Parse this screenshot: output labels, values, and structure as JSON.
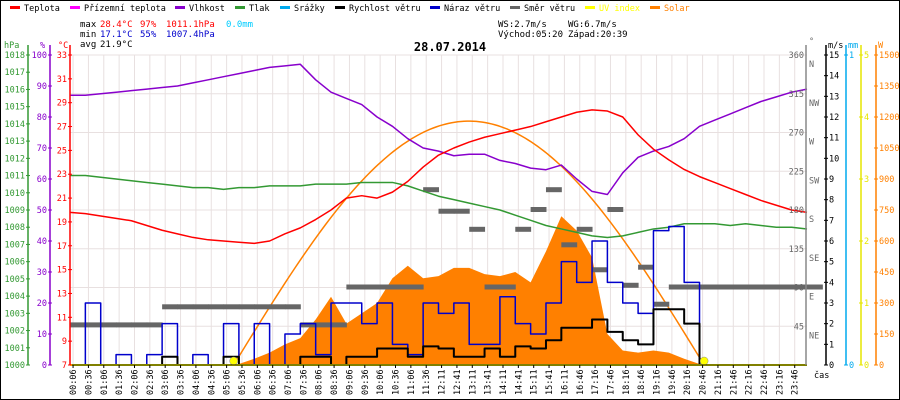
{
  "legend": [
    {
      "label": "Teplota",
      "color": "#ff0000"
    },
    {
      "label": "Přízemní teplota",
      "color": "#ff00ff"
    },
    {
      "label": "Vlhkost",
      "color": "#8800cc"
    },
    {
      "label": "Tlak",
      "color": "#339933"
    },
    {
      "label": "Srážky",
      "color": "#00aaee"
    },
    {
      "label": "Rychlost větru",
      "color": "#000000"
    },
    {
      "label": "Náraz větru",
      "color": "#0000cc"
    },
    {
      "label": "Směr větru",
      "color": "#666666"
    },
    {
      "label": "UV index",
      "color": "#ffff00"
    },
    {
      "label": "Solar",
      "color": "#ff8000"
    }
  ],
  "stats": {
    "max_label": "max",
    "max_temp": "28.4°C",
    "max_hum": "97%",
    "max_press": "1011.1hPa",
    "rain": "0.0mm",
    "min_label": "min",
    "min_temp": "17.1°C",
    "min_hum": "55%",
    "min_press": "1007.4hPa",
    "avg_label": "avg",
    "avg_temp": "21.9°C",
    "ws": "WS:2.7m/s",
    "wg": "WG:6.7m/s",
    "sunrise": "Východ:05:20",
    "sunset": "Západ:20:39"
  },
  "chart_data": {
    "type": "line",
    "title": "28.07.2014",
    "xlabel": "čas",
    "x_step_hours": 0.5,
    "x_tick_labels": [
      "00:06",
      "00:36",
      "01:06",
      "01:36",
      "02:06",
      "02:36",
      "03:06",
      "03:36",
      "04:06",
      "04:36",
      "05:06",
      "05:36",
      "06:06",
      "06:36",
      "07:06",
      "07:36",
      "08:06",
      "08:36",
      "09:06",
      "09:36",
      "10:06",
      "10:36",
      "11:06",
      "11:36",
      "12:11",
      "12:41",
      "13:11",
      "13:41",
      "14:11",
      "14:41",
      "15:11",
      "15:41",
      "16:11",
      "16:46",
      "17:16",
      "17:46",
      "18:16",
      "18:46",
      "19:16",
      "19:46",
      "20:16",
      "20:46",
      "21:16",
      "21:46",
      "22:16",
      "22:46",
      "23:16",
      "23:46"
    ],
    "axes": {
      "pressure": {
        "unit": "hPa",
        "range": [
          1000,
          1018
        ],
        "step": 1
      },
      "humidity": {
        "unit": "%",
        "range": [
          0,
          100
        ],
        "step": 10
      },
      "temperature": {
        "unit": "°C",
        "range": [
          7,
          33
        ],
        "step": 2
      },
      "direction": {
        "unit": "°",
        "range": [
          0,
          360
        ],
        "step": 45,
        "names": [
          "NE",
          "E",
          "SE",
          "S",
          "SW",
          "W",
          "NW",
          "N"
        ]
      },
      "wind": {
        "unit": "m/s",
        "range": [
          0,
          15
        ],
        "step": 1
      },
      "rain": {
        "unit": "mm",
        "range": [
          0,
          1
        ],
        "step": 1
      },
      "uv": {
        "unit": "",
        "range": [
          0,
          5
        ],
        "step": 1
      },
      "solar": {
        "unit": "W",
        "range": [
          0,
          1500
        ],
        "step": 150
      }
    },
    "sun": {
      "sunrise_h": 5.33,
      "sunset_h": 20.65,
      "theoretical_peak_w": 1180
    },
    "series": {
      "temperature": [
        19.8,
        19.7,
        19.5,
        19.3,
        19.1,
        18.7,
        18.3,
        18.0,
        17.7,
        17.5,
        17.4,
        17.3,
        17.2,
        17.4,
        18.0,
        18.5,
        19.2,
        20.0,
        21.0,
        21.2,
        21.0,
        21.5,
        22.4,
        23.6,
        24.6,
        25.2,
        25.7,
        26.1,
        26.4,
        26.7,
        27.0,
        27.4,
        27.8,
        28.2,
        28.4,
        28.3,
        27.8,
        26.3,
        25.1,
        24.2,
        23.4,
        22.8,
        22.3,
        21.8,
        21.3,
        20.8,
        20.4,
        20.0,
        19.8
      ],
      "humidity": [
        87,
        87,
        87.5,
        88,
        88.5,
        89,
        89.5,
        90,
        91,
        92,
        93,
        94,
        95,
        96,
        96.5,
        97,
        92,
        88,
        86,
        84,
        80,
        77,
        73,
        70,
        69,
        67.5,
        68,
        68,
        66,
        65,
        63.5,
        63,
        64.5,
        60,
        56,
        55,
        62,
        67,
        69,
        70.5,
        73,
        77,
        79,
        81,
        83,
        85,
        86.5,
        88,
        89
      ],
      "pressure": [
        1011.0,
        1011.0,
        1010.9,
        1010.8,
        1010.7,
        1010.6,
        1010.5,
        1010.4,
        1010.3,
        1010.3,
        1010.2,
        1010.3,
        1010.3,
        1010.4,
        1010.4,
        1010.4,
        1010.5,
        1010.5,
        1010.5,
        1010.6,
        1010.6,
        1010.6,
        1010.4,
        1010.1,
        1009.8,
        1009.6,
        1009.4,
        1009.2,
        1009.0,
        1008.7,
        1008.4,
        1008.1,
        1007.9,
        1007.7,
        1007.5,
        1007.4,
        1007.5,
        1007.7,
        1007.9,
        1008.0,
        1008.2,
        1008.2,
        1008.2,
        1008.1,
        1008.2,
        1008.1,
        1008.0,
        1008.0,
        1007.9
      ],
      "wind_speed": [
        0,
        0,
        0,
        0,
        0,
        0,
        0.4,
        0,
        0,
        0,
        0.4,
        0,
        0,
        0,
        0,
        0.4,
        0.4,
        0,
        0.4,
        0.4,
        0.8,
        0.8,
        0.4,
        0.9,
        0.8,
        0.4,
        0.4,
        0.8,
        0.4,
        0.9,
        0.8,
        1.2,
        1.8,
        1.8,
        2.2,
        1.6,
        1.2,
        1.0,
        2.7,
        2.7,
        2.0,
        0,
        0,
        0,
        0,
        0,
        0,
        0,
        0
      ],
      "wind_gust": [
        0,
        3,
        0,
        0.5,
        0,
        0.5,
        2,
        0,
        0.5,
        0,
        2,
        0,
        2,
        0,
        1.5,
        2,
        0.5,
        3,
        3,
        2,
        3,
        1,
        0.5,
        3,
        2.5,
        3,
        1,
        1,
        3.3,
        2,
        1.5,
        3,
        5,
        4,
        6,
        4,
        3,
        2.5,
        6.5,
        6.7,
        4,
        0,
        0,
        0,
        0,
        0,
        0,
        0,
        0
      ],
      "wind_direction": [
        46,
        46,
        46,
        46,
        46,
        46,
        67,
        67,
        67,
        67,
        67,
        67,
        67,
        67,
        67,
        46,
        46,
        46,
        90,
        90,
        90,
        90,
        90,
        203,
        178,
        178,
        157,
        90,
        90,
        157,
        180,
        203,
        139,
        157,
        110,
        180,
        92,
        113,
        70,
        90,
        90,
        90,
        90,
        90,
        90,
        90,
        90,
        90,
        90
      ],
      "solar": [
        0,
        0,
        0,
        0,
        0,
        0,
        0,
        0,
        0,
        0,
        0,
        5,
        30,
        60,
        100,
        130,
        220,
        330,
        200,
        250,
        300,
        420,
        480,
        420,
        430,
        470,
        470,
        440,
        430,
        450,
        400,
        550,
        720,
        650,
        520,
        150,
        70,
        60,
        70,
        60,
        30,
        5,
        0,
        0,
        0,
        0,
        0,
        0,
        0
      ],
      "uv": [
        0,
        0,
        0,
        0,
        0,
        0,
        0,
        0,
        0,
        0,
        0,
        0,
        0,
        0,
        0,
        0,
        0,
        0,
        0,
        0,
        0,
        0,
        0,
        0,
        0,
        0,
        0,
        0,
        0,
        0,
        0,
        0,
        0,
        0,
        0,
        0,
        0,
        0,
        0,
        0,
        0,
        0,
        0,
        0,
        0,
        0,
        0,
        0,
        0
      ],
      "rain": [
        0,
        0,
        0,
        0,
        0,
        0,
        0,
        0,
        0,
        0,
        0,
        0,
        0,
        0,
        0,
        0,
        0,
        0,
        0,
        0,
        0,
        0,
        0,
        0,
        0,
        0,
        0,
        0,
        0,
        0,
        0,
        0,
        0,
        0,
        0,
        0,
        0,
        0,
        0,
        0,
        0,
        0,
        0,
        0,
        0,
        0,
        0,
        0,
        0
      ]
    }
  }
}
